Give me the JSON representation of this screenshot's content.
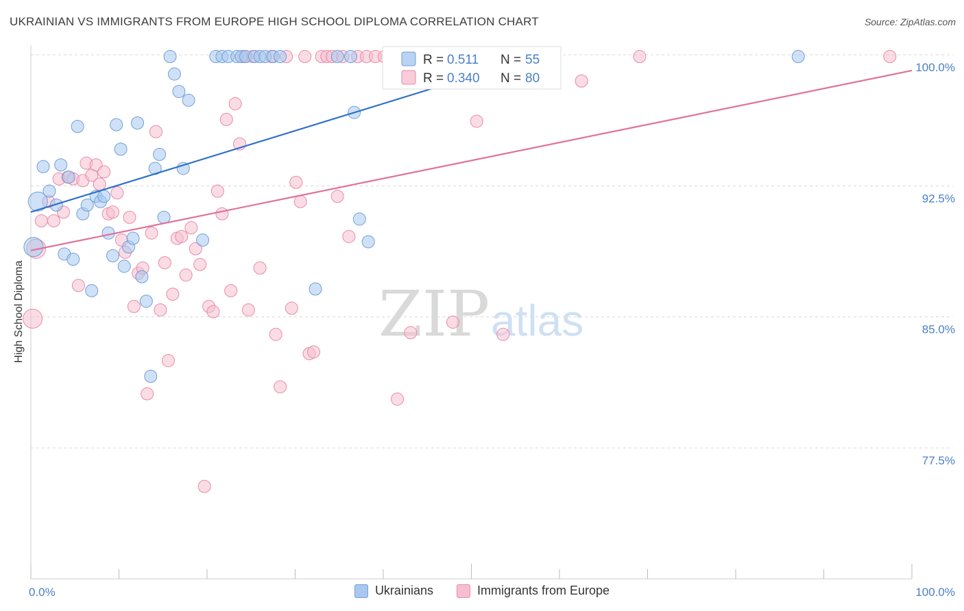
{
  "title": "UKRAINIAN VS IMMIGRANTS FROM EUROPE HIGH SCHOOL DIPLOMA CORRELATION CHART",
  "source": "Source: ZipAtlas.com",
  "watermark": {
    "zip": "ZIP",
    "atlas": "atlas"
  },
  "colors": {
    "blue_fill": "#a8c8ef",
    "blue_stroke": "#6f9fd8",
    "blue_line": "#2b6fca",
    "pink_fill": "#f6bfd0",
    "pink_stroke": "#e98aa8",
    "pink_line": "#e0709a",
    "tick_text": "#4a7fc8",
    "grid": "#d8d8d8"
  },
  "chart_data": {
    "type": "scatter",
    "xlabel": "",
    "ylabel": "High School Diploma",
    "xlim": [
      0,
      100
    ],
    "ylim": [
      71.5,
      100.2
    ],
    "x_tick_labels": [
      {
        "value": 0,
        "label": "0.0%"
      },
      {
        "value": 100,
        "label": "100.0%"
      }
    ],
    "y_ticks": [
      {
        "value": 77.5,
        "label": "77.5%"
      },
      {
        "value": 85.0,
        "label": "85.0%"
      },
      {
        "value": 92.5,
        "label": "92.5%"
      },
      {
        "value": 100.0,
        "label": "100.0%"
      }
    ],
    "grid": true,
    "legend_position": "top-center",
    "series": [
      {
        "name": "Ukrainians",
        "r_label": "R =",
        "r": "0.511",
        "n_label": "N =",
        "n": "55",
        "trend": {
          "x": [
            0,
            58
          ],
          "y": [
            91.0,
            100.0
          ]
        },
        "points": [
          [
            0.3,
            89.0
          ],
          [
            0.8,
            91.6
          ],
          [
            1.4,
            93.6
          ],
          [
            2.1,
            92.2
          ],
          [
            2.9,
            91.4
          ],
          [
            3.4,
            93.7
          ],
          [
            3.8,
            88.6
          ],
          [
            4.3,
            93.0
          ],
          [
            4.8,
            88.3
          ],
          [
            5.3,
            95.9
          ],
          [
            5.9,
            90.9
          ],
          [
            6.4,
            91.4
          ],
          [
            6.9,
            86.5
          ],
          [
            7.4,
            91.9
          ],
          [
            7.9,
            91.6
          ],
          [
            8.3,
            91.9
          ],
          [
            8.8,
            89.8
          ],
          [
            9.3,
            88.5
          ],
          [
            9.7,
            96.0
          ],
          [
            10.2,
            94.6
          ],
          [
            10.6,
            87.9
          ],
          [
            11.1,
            89.0
          ],
          [
            11.6,
            89.5
          ],
          [
            12.1,
            96.1
          ],
          [
            12.6,
            87.3
          ],
          [
            13.1,
            85.9
          ],
          [
            13.6,
            81.6
          ],
          [
            14.1,
            93.5
          ],
          [
            14.6,
            94.3
          ],
          [
            15.1,
            90.7
          ],
          [
            15.8,
            99.9
          ],
          [
            16.3,
            98.9
          ],
          [
            16.8,
            97.9
          ],
          [
            17.3,
            93.5
          ],
          [
            17.9,
            97.4
          ],
          [
            19.5,
            89.4
          ],
          [
            21.0,
            99.9
          ],
          [
            21.7,
            99.9
          ],
          [
            22.4,
            99.9
          ],
          [
            23.4,
            99.9
          ],
          [
            23.9,
            99.9
          ],
          [
            24.4,
            99.9
          ],
          [
            25.4,
            99.9
          ],
          [
            26.0,
            99.9
          ],
          [
            26.6,
            99.9
          ],
          [
            27.5,
            99.9
          ],
          [
            28.3,
            99.9
          ],
          [
            32.3,
            86.6
          ],
          [
            34.8,
            99.9
          ],
          [
            36.3,
            99.9
          ],
          [
            36.7,
            96.7
          ],
          [
            37.3,
            90.6
          ],
          [
            38.3,
            89.3
          ],
          [
            45.3,
            99.9
          ],
          [
            87.1,
            99.9
          ]
        ],
        "large_points": [
          [
            0.3,
            89.0
          ],
          [
            0.8,
            91.6
          ]
        ]
      },
      {
        "name": "Immigrants from Europe",
        "r_label": "R =",
        "r": "0.340",
        "n_label": "N =",
        "n": "80",
        "trend": {
          "x": [
            0,
            100
          ],
          "y": [
            88.8,
            99.1
          ]
        },
        "points": [
          [
            0.2,
            84.9
          ],
          [
            0.6,
            88.9
          ],
          [
            1.2,
            90.5
          ],
          [
            2.0,
            91.6
          ],
          [
            2.6,
            90.5
          ],
          [
            3.2,
            92.9
          ],
          [
            3.7,
            91.0
          ],
          [
            4.2,
            93.0
          ],
          [
            4.8,
            92.9
          ],
          [
            5.4,
            86.8
          ],
          [
            5.9,
            92.8
          ],
          [
            6.3,
            93.8
          ],
          [
            6.9,
            93.1
          ],
          [
            7.4,
            93.7
          ],
          [
            7.8,
            92.6
          ],
          [
            8.3,
            93.3
          ],
          [
            8.8,
            90.9
          ],
          [
            9.3,
            91.0
          ],
          [
            9.8,
            92.1
          ],
          [
            10.3,
            89.4
          ],
          [
            10.7,
            88.7
          ],
          [
            11.2,
            90.7
          ],
          [
            11.7,
            85.6
          ],
          [
            12.2,
            87.5
          ],
          [
            12.7,
            87.8
          ],
          [
            13.2,
            80.6
          ],
          [
            13.7,
            89.8
          ],
          [
            14.2,
            95.6
          ],
          [
            14.7,
            85.4
          ],
          [
            15.2,
            88.1
          ],
          [
            15.6,
            82.5
          ],
          [
            16.1,
            86.3
          ],
          [
            16.6,
            89.5
          ],
          [
            17.1,
            89.6
          ],
          [
            17.6,
            87.4
          ],
          [
            18.2,
            90.1
          ],
          [
            18.7,
            88.9
          ],
          [
            19.2,
            88.0
          ],
          [
            19.7,
            75.3
          ],
          [
            20.2,
            85.6
          ],
          [
            20.7,
            85.3
          ],
          [
            21.2,
            92.2
          ],
          [
            21.7,
            90.9
          ],
          [
            22.2,
            96.3
          ],
          [
            22.7,
            86.5
          ],
          [
            23.2,
            97.2
          ],
          [
            23.7,
            94.9
          ],
          [
            24.2,
            99.9
          ],
          [
            24.7,
            85.4
          ],
          [
            25.2,
            99.9
          ],
          [
            26.0,
            87.8
          ],
          [
            27.3,
            99.9
          ],
          [
            27.8,
            84.0
          ],
          [
            28.3,
            81.0
          ],
          [
            29.0,
            99.9
          ],
          [
            29.6,
            85.5
          ],
          [
            30.1,
            92.7
          ],
          [
            30.6,
            91.6
          ],
          [
            31.1,
            99.9
          ],
          [
            31.6,
            82.9
          ],
          [
            32.1,
            83.0
          ],
          [
            33.0,
            99.9
          ],
          [
            33.6,
            99.9
          ],
          [
            34.2,
            99.9
          ],
          [
            34.8,
            91.9
          ],
          [
            35.4,
            99.9
          ],
          [
            36.1,
            89.6
          ],
          [
            37.1,
            99.9
          ],
          [
            38.1,
            99.9
          ],
          [
            39.1,
            99.9
          ],
          [
            40.1,
            99.9
          ],
          [
            41.1,
            99.9
          ],
          [
            41.6,
            80.3
          ],
          [
            43.1,
            84.1
          ],
          [
            47.9,
            84.7
          ],
          [
            50.6,
            96.2
          ],
          [
            53.6,
            84.0
          ],
          [
            62.5,
            98.5
          ],
          [
            69.1,
            99.9
          ],
          [
            97.5,
            99.9
          ]
        ],
        "large_points": [
          [
            0.2,
            84.9
          ],
          [
            0.6,
            88.9
          ]
        ]
      }
    ]
  }
}
